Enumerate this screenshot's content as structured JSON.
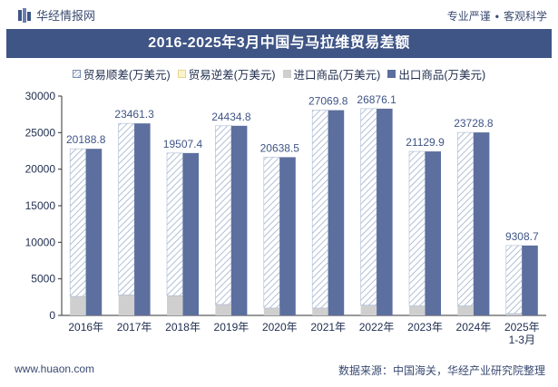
{
  "header": {
    "brand": "华经情报网",
    "tagline_left": "专业严谨",
    "tagline_right": "客观科学"
  },
  "footer": {
    "website": "www.huaon.com",
    "source": "数据来源：中国海关，华经产业研究院整理"
  },
  "colors": {
    "title_bg": "#3f5586",
    "export": "#5c6f9e",
    "import": "#cfcfcf",
    "surplus_hatch": "#9eb0cc",
    "label": "#3f5586"
  },
  "chart_data": {
    "type": "bar",
    "title": "2016-2025年3月中国与马拉维贸易差额",
    "categories": [
      "2016年",
      "2017年",
      "2018年",
      "2019年",
      "2020年",
      "2021年",
      "2022年",
      "2023年",
      "2024年",
      "2025年\n1-3月"
    ],
    "series": [
      {
        "name": "贸易顺差(万美元)",
        "values": [
          20188.8,
          23461.3,
          19507.4,
          24434.8,
          20638.5,
          27069.8,
          26876.1,
          21129.9,
          23728.8,
          9308.7
        ]
      },
      {
        "name": "贸易逆差(万美元)",
        "values": [
          0,
          0,
          0,
          0,
          0,
          0,
          0,
          0,
          0,
          0
        ]
      },
      {
        "name": "进口商品(万美元)",
        "values": [
          2600,
          2800,
          2700,
          1500,
          1000,
          1000,
          1400,
          1300,
          1300,
          250
        ]
      },
      {
        "name": "出口商品(万美元)",
        "values": [
          22789,
          26261,
          22207,
          25935,
          21639,
          28070,
          28276,
          22430,
          25029,
          9559
        ]
      }
    ],
    "data_labels": [
      "20188.8",
      "23461.3",
      "19507.4",
      "24434.8",
      "20638.5",
      "27069.8",
      "26876.1",
      "21129.9",
      "23728.8",
      "9308.7"
    ],
    "ylim": [
      0,
      30000
    ],
    "yticks": [
      0,
      5000,
      10000,
      15000,
      20000,
      25000,
      30000
    ],
    "xlabel": "",
    "ylabel": "",
    "grid": false,
    "legend_position": "top"
  }
}
